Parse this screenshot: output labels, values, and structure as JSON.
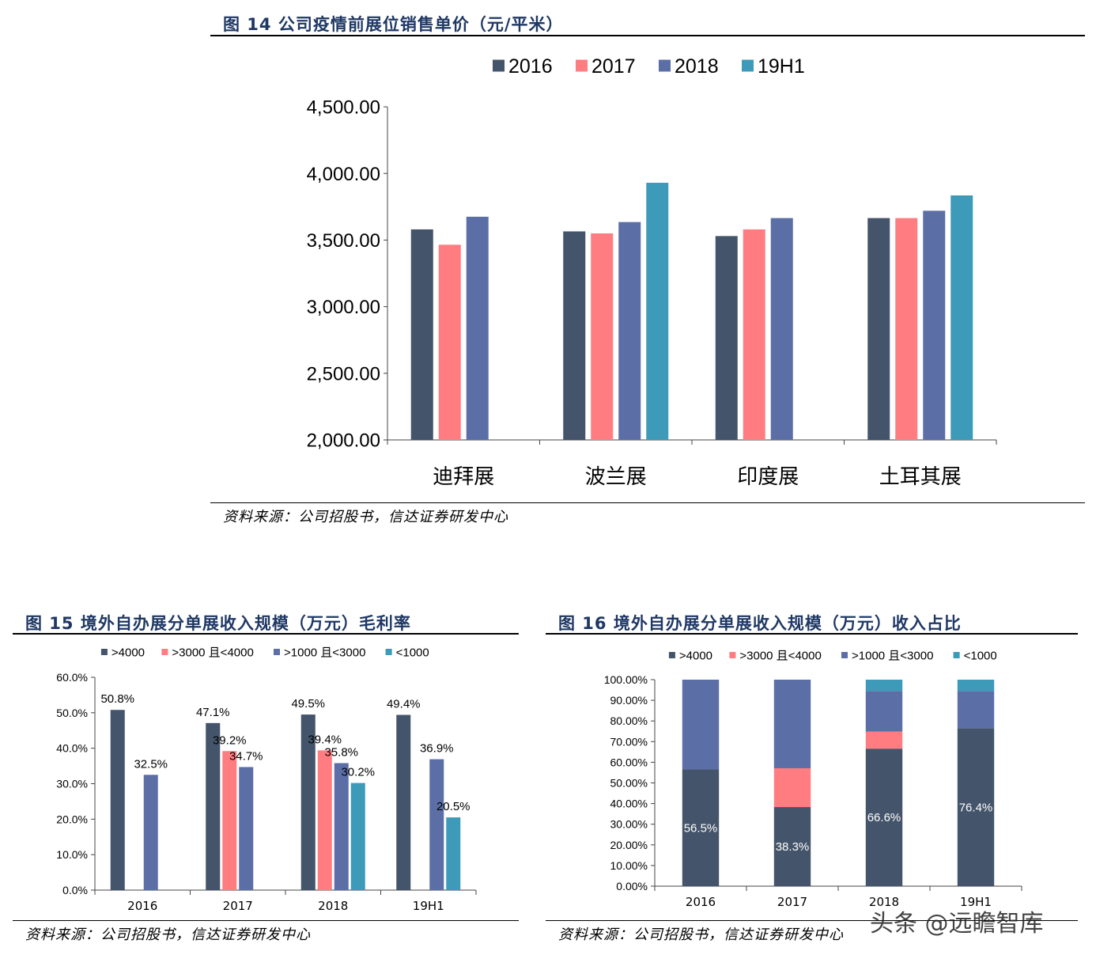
{
  "sections": [
    {
      "title": "图 14  公司疫情前展位销售单价（元/平米）",
      "source": "资料来源：公司招股书，信达证券研发中心"
    },
    {
      "title": "图 15  境外自办展分单展收入规模（万元）毛利率",
      "source": "资料来源：公司招股书，信达证券研发中心"
    },
    {
      "title": "图 16  境外自办展分单展收入规模（万元）收入占比",
      "source": "资料来源：公司招股书，信达证券研发中心"
    }
  ],
  "watermark": "头条 @远瞻智库",
  "colors": {
    "s2016": "#44546a",
    "s2017": "#ff7c80",
    "s2018": "#5b6fa6",
    "s19h1": "#3d9ab8"
  },
  "chart_data": [
    {
      "type": "bar",
      "categories": [
        "迪拜展",
        "波兰展",
        "印度展",
        "土耳其展"
      ],
      "legend_position": "top",
      "ylim": [
        2000,
        4500
      ],
      "yticks": [
        "2,000.00",
        "2,500.00",
        "3,000.00",
        "3,500.00",
        "4,000.00",
        "4,500.00"
      ],
      "series": [
        {
          "name": "2016",
          "values": [
            3580,
            3565,
            3530,
            3665
          ]
        },
        {
          "name": "2017",
          "values": [
            3465,
            3550,
            3580,
            3665
          ]
        },
        {
          "name": "2018",
          "values": [
            3675,
            3635,
            3665,
            3720
          ]
        },
        {
          "name": "19H1",
          "values": [
            null,
            3930,
            null,
            3835
          ]
        }
      ]
    },
    {
      "type": "bar",
      "categories": [
        "2016",
        "2017",
        "2018",
        "19H1"
      ],
      "legend_position": "top",
      "ylim": [
        0,
        60
      ],
      "yticks": [
        "0.0%",
        "10.0%",
        "20.0%",
        "30.0%",
        "40.0%",
        "50.0%",
        "60.0%"
      ],
      "series": [
        {
          "name": ">4000",
          "values": [
            50.8,
            47.1,
            49.5,
            49.4
          ],
          "labels": [
            "50.8%",
            "47.1%",
            "49.5%",
            "49.4%"
          ]
        },
        {
          "name": ">3000 且<4000",
          "values": [
            null,
            39.2,
            39.4,
            null
          ],
          "labels": [
            "",
            "39.2%",
            "39.4%",
            ""
          ]
        },
        {
          "name": ">1000 且<3000",
          "values": [
            32.5,
            34.7,
            35.8,
            36.9
          ],
          "labels": [
            "32.5%",
            "34.7%",
            "35.8%",
            "36.9%"
          ]
        },
        {
          "name": "<1000",
          "values": [
            null,
            null,
            30.2,
            20.5
          ],
          "labels": [
            "",
            "",
            "30.2%",
            "20.5%"
          ]
        }
      ]
    },
    {
      "type": "bar",
      "stacked": true,
      "categories": [
        "2016",
        "2017",
        "2018",
        "19H1"
      ],
      "legend_position": "top",
      "ylim": [
        0,
        100
      ],
      "yticks": [
        "0.00%",
        "10.00%",
        "20.00%",
        "30.00%",
        "40.00%",
        "50.00%",
        "60.00%",
        "70.00%",
        "80.00%",
        "90.00%",
        "100.00%"
      ],
      "series": [
        {
          "name": ">4000",
          "values": [
            56.5,
            38.3,
            66.6,
            76.4
          ],
          "labels": [
            "56.5%",
            "38.3%",
            "66.6%",
            "76.4%"
          ]
        },
        {
          "name": ">3000 且<4000",
          "values": [
            0,
            18.8,
            8.3,
            0
          ]
        },
        {
          "name": ">1000 且<3000",
          "values": [
            43.5,
            42.9,
            19.6,
            18.1
          ]
        },
        {
          "name": "<1000",
          "values": [
            0,
            0,
            5.5,
            5.5
          ]
        }
      ]
    }
  ]
}
